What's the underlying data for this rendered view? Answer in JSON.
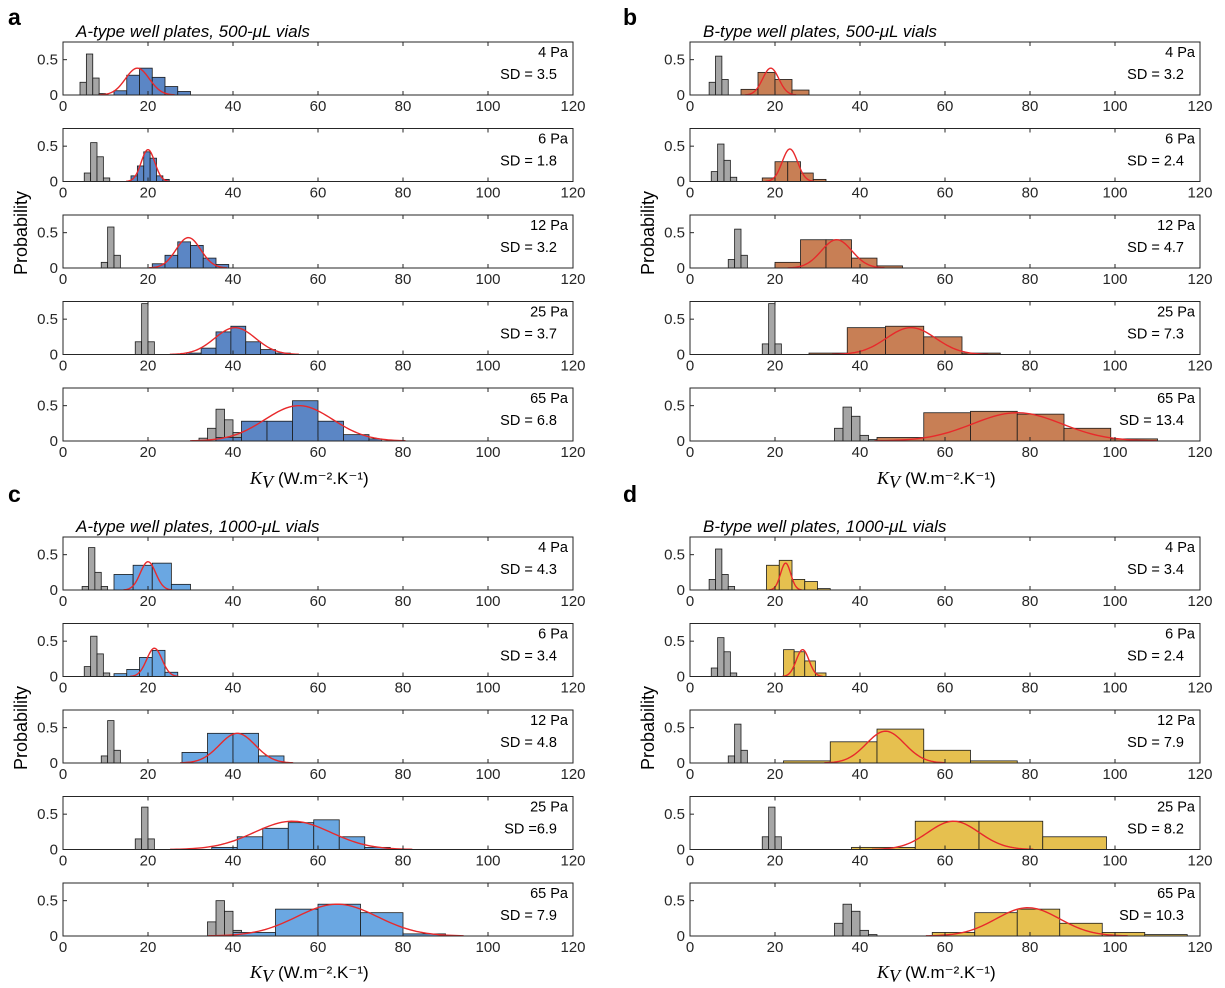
{
  "colors": {
    "control": "#a6a6a6",
    "fit": "#e8292b"
  },
  "panels": [
    {
      "letter": "a",
      "title": "A-type well plates, 500-μL vials",
      "color": "#5b86c5",
      "show_ylabel": true,
      "ylabel": "Probability",
      "xlabel_symbol": "K",
      "xlabel_sub": "V",
      "xlabel_unit": "(W.m⁻².K⁻¹)"
    },
    {
      "letter": "b",
      "title": "B-type well plates, 500-μL vials",
      "color": "#c87f55",
      "show_ylabel": true,
      "ylabel": "Probability",
      "xlabel_symbol": "K",
      "xlabel_sub": "V",
      "xlabel_unit": "(W.m⁻².K⁻¹)"
    },
    {
      "letter": "c",
      "title": "A-type well plates, 1000-μL vials",
      "color": "#6aa7e2",
      "show_ylabel": true,
      "ylabel": "Probability",
      "xlabel_symbol": "K",
      "xlabel_sub": "V",
      "xlabel_unit": "(W.m⁻².K⁻¹)"
    },
    {
      "letter": "d",
      "title": "B-type well plates, 1000-μL vials",
      "color": "#e6c04f",
      "show_ylabel": true,
      "ylabel": "Probability",
      "xlabel_symbol": "K",
      "xlabel_sub": "V",
      "xlabel_unit": "(W.m⁻².K⁻¹)"
    }
  ],
  "chart_data": {
    "type": "bar",
    "subtype": "histogram-grid",
    "xlim": [
      0,
      120
    ],
    "ylim": [
      0,
      0.75
    ],
    "xticks": [
      0,
      20,
      40,
      60,
      80,
      100,
      120
    ],
    "yticks": [
      0,
      0.5
    ],
    "ytick_labels": [
      "0",
      "0.5"
    ],
    "grid": false,
    "panels": [
      {
        "id": "a",
        "subplots": [
          {
            "pressure": "4 Pa",
            "sd": "SD = 3.5",
            "control": {
              "edges": [
                4,
                5.5,
                7,
                8.5,
                10
              ],
              "values": [
                0.18,
                0.58,
                0.24,
                0.02
              ]
            },
            "data": {
              "edges": [
                12,
                15,
                18,
                21,
                24,
                27,
                30
              ],
              "values": [
                0.06,
                0.28,
                0.38,
                0.25,
                0.12,
                0.05
              ]
            },
            "fit": {
              "mean": 17.5,
              "sd": 2.8,
              "peak": 0.38
            }
          },
          {
            "pressure": "6 Pa",
            "sd": "SD = 1.8",
            "control": {
              "edges": [
                5,
                6.5,
                8,
                9.5,
                11
              ],
              "values": [
                0.12,
                0.55,
                0.35,
                0.05
              ]
            },
            "data": {
              "edges": [
                16,
                17.5,
                19,
                20.5,
                22,
                23.5,
                25
              ],
              "values": [
                0.08,
                0.22,
                0.42,
                0.33,
                0.08,
                0.03
              ]
            },
            "fit": {
              "mean": 20,
              "sd": 1.6,
              "peak": 0.45
            }
          },
          {
            "pressure": "12 Pa",
            "sd": "SD = 3.2",
            "control": {
              "edges": [
                9,
                10.5,
                12,
                13.5
              ],
              "values": [
                0.08,
                0.58,
                0.18
              ]
            },
            "data": {
              "edges": [
                21,
                24,
                27,
                30,
                33,
                36,
                39
              ],
              "values": [
                0.06,
                0.18,
                0.37,
                0.32,
                0.14,
                0.05
              ]
            },
            "fit": {
              "mean": 29.5,
              "sd": 2.9,
              "peak": 0.43
            }
          },
          {
            "pressure": "25 Pa",
            "sd": "SD = 3.7",
            "control": {
              "edges": [
                17,
                18.5,
                20,
                21.5
              ],
              "values": [
                0.18,
                0.72,
                0.18
              ]
            },
            "data": {
              "edges": [
                29,
                32.5,
                36,
                39.5,
                43,
                46.5,
                50,
                53.5
              ],
              "values": [
                0.02,
                0.09,
                0.32,
                0.4,
                0.18,
                0.07,
                0.02
              ]
            },
            "fit": {
              "mean": 40.5,
              "sd": 4.8,
              "peak": 0.38
            }
          },
          {
            "pressure": "65 Pa",
            "sd": "SD = 6.8",
            "control": {
              "edges": [
                32,
                34,
                36,
                38,
                40,
                42,
                44
              ],
              "values": [
                0.04,
                0.18,
                0.45,
                0.3,
                0.12,
                0.03
              ]
            },
            "data": {
              "edges": [
                36,
                42,
                48,
                54,
                60,
                66,
                72,
                75
              ],
              "values": [
                0.05,
                0.28,
                0.28,
                0.57,
                0.28,
                0.09,
                0.03
              ]
            },
            "fit": {
              "mean": 55.5,
              "sd": 8,
              "peak": 0.5
            }
          }
        ]
      },
      {
        "id": "b",
        "subplots": [
          {
            "pressure": "4 Pa",
            "sd": "SD = 3.2",
            "control": {
              "edges": [
                4.5,
                6,
                7.5,
                9
              ],
              "values": [
                0.18,
                0.55,
                0.22
              ]
            },
            "data": {
              "edges": [
                12,
                16,
                20,
                24,
                28
              ],
              "values": [
                0.08,
                0.32,
                0.22,
                0.07
              ]
            },
            "fit": {
              "mean": 19,
              "sd": 1.9,
              "peak": 0.38
            }
          },
          {
            "pressure": "6 Pa",
            "sd": "SD = 2.4",
            "control": {
              "edges": [
                5,
                6.5,
                8,
                9.5,
                11
              ],
              "values": [
                0.14,
                0.53,
                0.3,
                0.06
              ]
            },
            "data": {
              "edges": [
                17,
                20,
                23,
                26,
                29,
                32
              ],
              "values": [
                0.05,
                0.28,
                0.28,
                0.12,
                0.03
              ]
            },
            "fit": {
              "mean": 23.5,
              "sd": 1.8,
              "peak": 0.46
            }
          },
          {
            "pressure": "12 Pa",
            "sd": "SD = 4.7",
            "control": {
              "edges": [
                9,
                10.5,
                12,
                13.5
              ],
              "values": [
                0.12,
                0.55,
                0.18
              ]
            },
            "data": {
              "edges": [
                20,
                26,
                32,
                38,
                44,
                50
              ],
              "values": [
                0.08,
                0.4,
                0.4,
                0.14,
                0.03
              ]
            },
            "fit": {
              "mean": 34.5,
              "sd": 3.6,
              "peak": 0.4
            }
          },
          {
            "pressure": "25 Pa",
            "sd": "SD = 7.3",
            "control": {
              "edges": [
                17,
                18.5,
                20,
                21.5
              ],
              "values": [
                0.15,
                0.72,
                0.15
              ]
            },
            "data": {
              "edges": [
                28,
                37,
                46,
                55,
                64,
                73
              ],
              "values": [
                0.02,
                0.38,
                0.4,
                0.25,
                0.02
              ]
            },
            "fit": {
              "mean": 52,
              "sd": 5.8,
              "peak": 0.38
            }
          },
          {
            "pressure": "65 Pa",
            "sd": "SD = 13.4",
            "control": {
              "edges": [
                34,
                36,
                38,
                40,
                42,
                44
              ],
              "values": [
                0.18,
                0.48,
                0.35,
                0.08,
                0.02
              ]
            },
            "data": {
              "edges": [
                44,
                55,
                66,
                77,
                88,
                99,
                110
              ],
              "values": [
                0.05,
                0.4,
                0.42,
                0.38,
                0.18,
                0.03
              ]
            },
            "fit": {
              "mean": 77,
              "sd": 10.5,
              "peak": 0.4
            }
          }
        ]
      },
      {
        "id": "c",
        "subplots": [
          {
            "pressure": "4 Pa",
            "sd": "SD = 4.3",
            "control": {
              "edges": [
                4.5,
                6,
                7.5,
                9,
                10.5
              ],
              "values": [
                0.05,
                0.6,
                0.25,
                0.05
              ]
            },
            "data": {
              "edges": [
                12,
                16.5,
                21,
                25.5,
                30
              ],
              "values": [
                0.22,
                0.35,
                0.38,
                0.08
              ]
            },
            "fit": {
              "mean": 20,
              "sd": 1.8,
              "peak": 0.4
            }
          },
          {
            "pressure": "6 Pa",
            "sd": "SD = 3.4",
            "control": {
              "edges": [
                5,
                6.5,
                8,
                9.5,
                11
              ],
              "values": [
                0.14,
                0.57,
                0.32,
                0.05
              ]
            },
            "data": {
              "edges": [
                12,
                15,
                18,
                21,
                24,
                27
              ],
              "values": [
                0.04,
                0.1,
                0.27,
                0.37,
                0.06
              ]
            },
            "fit": {
              "mean": 21.5,
              "sd": 1.8,
              "peak": 0.4
            }
          },
          {
            "pressure": "12 Pa",
            "sd": "SD = 4.8",
            "control": {
              "edges": [
                9,
                10.5,
                12,
                13.5
              ],
              "values": [
                0.1,
                0.6,
                0.18
              ]
            },
            "data": {
              "edges": [
                28,
                34,
                40,
                46,
                52
              ],
              "values": [
                0.15,
                0.42,
                0.42,
                0.1
              ]
            },
            "fit": {
              "mean": 41,
              "sd": 4.2,
              "peak": 0.42
            }
          },
          {
            "pressure": "25 Pa",
            "sd": "SD =6.9",
            "control": {
              "edges": [
                17,
                18.5,
                20,
                21.5
              ],
              "values": [
                0.15,
                0.6,
                0.15
              ]
            },
            "data": {
              "edges": [
                35,
                41,
                47,
                53,
                59,
                65,
                71,
                77
              ],
              "values": [
                0.03,
                0.18,
                0.3,
                0.38,
                0.42,
                0.18,
                0.03
              ]
            },
            "fit": {
              "mean": 54,
              "sd": 9,
              "peak": 0.4
            }
          },
          {
            "pressure": "65 Pa",
            "sd": "SD = 7.9",
            "control": {
              "edges": [
                34,
                36,
                38,
                40,
                42,
                44
              ],
              "values": [
                0.2,
                0.5,
                0.35,
                0.08,
                0.02
              ]
            },
            "data": {
              "edges": [
                40,
                50,
                60,
                70,
                80,
                90
              ],
              "values": [
                0.05,
                0.38,
                0.45,
                0.33,
                0.03
              ]
            },
            "fit": {
              "mean": 64.5,
              "sd": 9.5,
              "peak": 0.45
            }
          }
        ]
      },
      {
        "id": "d",
        "subplots": [
          {
            "pressure": "4 Pa",
            "sd": "SD = 3.4",
            "control": {
              "edges": [
                4.5,
                6,
                7.5,
                9,
                10.5
              ],
              "values": [
                0.15,
                0.58,
                0.22,
                0.05
              ]
            },
            "data": {
              "edges": [
                18,
                21,
                24,
                27,
                30,
                33
              ],
              "values": [
                0.35,
                0.42,
                0.15,
                0.12,
                0.02
              ]
            },
            "fit": {
              "mean": 22.5,
              "sd": 1.2,
              "peak": 0.38
            }
          },
          {
            "pressure": "6 Pa",
            "sd": "SD = 2.4",
            "control": {
              "edges": [
                5,
                6.5,
                8,
                9.5,
                11
              ],
              "values": [
                0.12,
                0.55,
                0.35,
                0.05
              ]
            },
            "data": {
              "edges": [
                22,
                24.5,
                27,
                29.5,
                32
              ],
              "values": [
                0.38,
                0.35,
                0.22,
                0.05
              ]
            },
            "fit": {
              "mean": 26.5,
              "sd": 1.5,
              "peak": 0.38
            }
          },
          {
            "pressure": "12 Pa",
            "sd": "SD = 7.9",
            "control": {
              "edges": [
                9,
                10.5,
                12,
                13.5
              ],
              "values": [
                0.1,
                0.55,
                0.18
              ]
            },
            "data": {
              "edges": [
                22,
                33,
                44,
                55,
                66,
                77
              ],
              "values": [
                0.03,
                0.3,
                0.48,
                0.18,
                0.03
              ]
            },
            "fit": {
              "mean": 46,
              "sd": 4.5,
              "peak": 0.45
            }
          },
          {
            "pressure": "25 Pa",
            "sd": "SD = 8.2",
            "control": {
              "edges": [
                17,
                18.5,
                20,
                21.5
              ],
              "values": [
                0.18,
                0.6,
                0.18
              ]
            },
            "data": {
              "edges": [
                38,
                53,
                68,
                83,
                98
              ],
              "values": [
                0.03,
                0.4,
                0.4,
                0.18
              ]
            },
            "fit": {
              "mean": 62,
              "sd": 6,
              "peak": 0.4
            }
          },
          {
            "pressure": "65 Pa",
            "sd": "SD = 10.3",
            "control": {
              "edges": [
                34,
                36,
                38,
                40,
                42,
                44
              ],
              "values": [
                0.18,
                0.45,
                0.35,
                0.08,
                0.02
              ]
            },
            "data": {
              "edges": [
                57,
                67,
                77,
                87,
                97,
                107,
                117
              ],
              "values": [
                0.05,
                0.33,
                0.38,
                0.18,
                0.05,
                0.02
              ]
            },
            "fit": {
              "mean": 79.5,
              "sd": 7.5,
              "peak": 0.4
            }
          }
        ]
      }
    ]
  }
}
